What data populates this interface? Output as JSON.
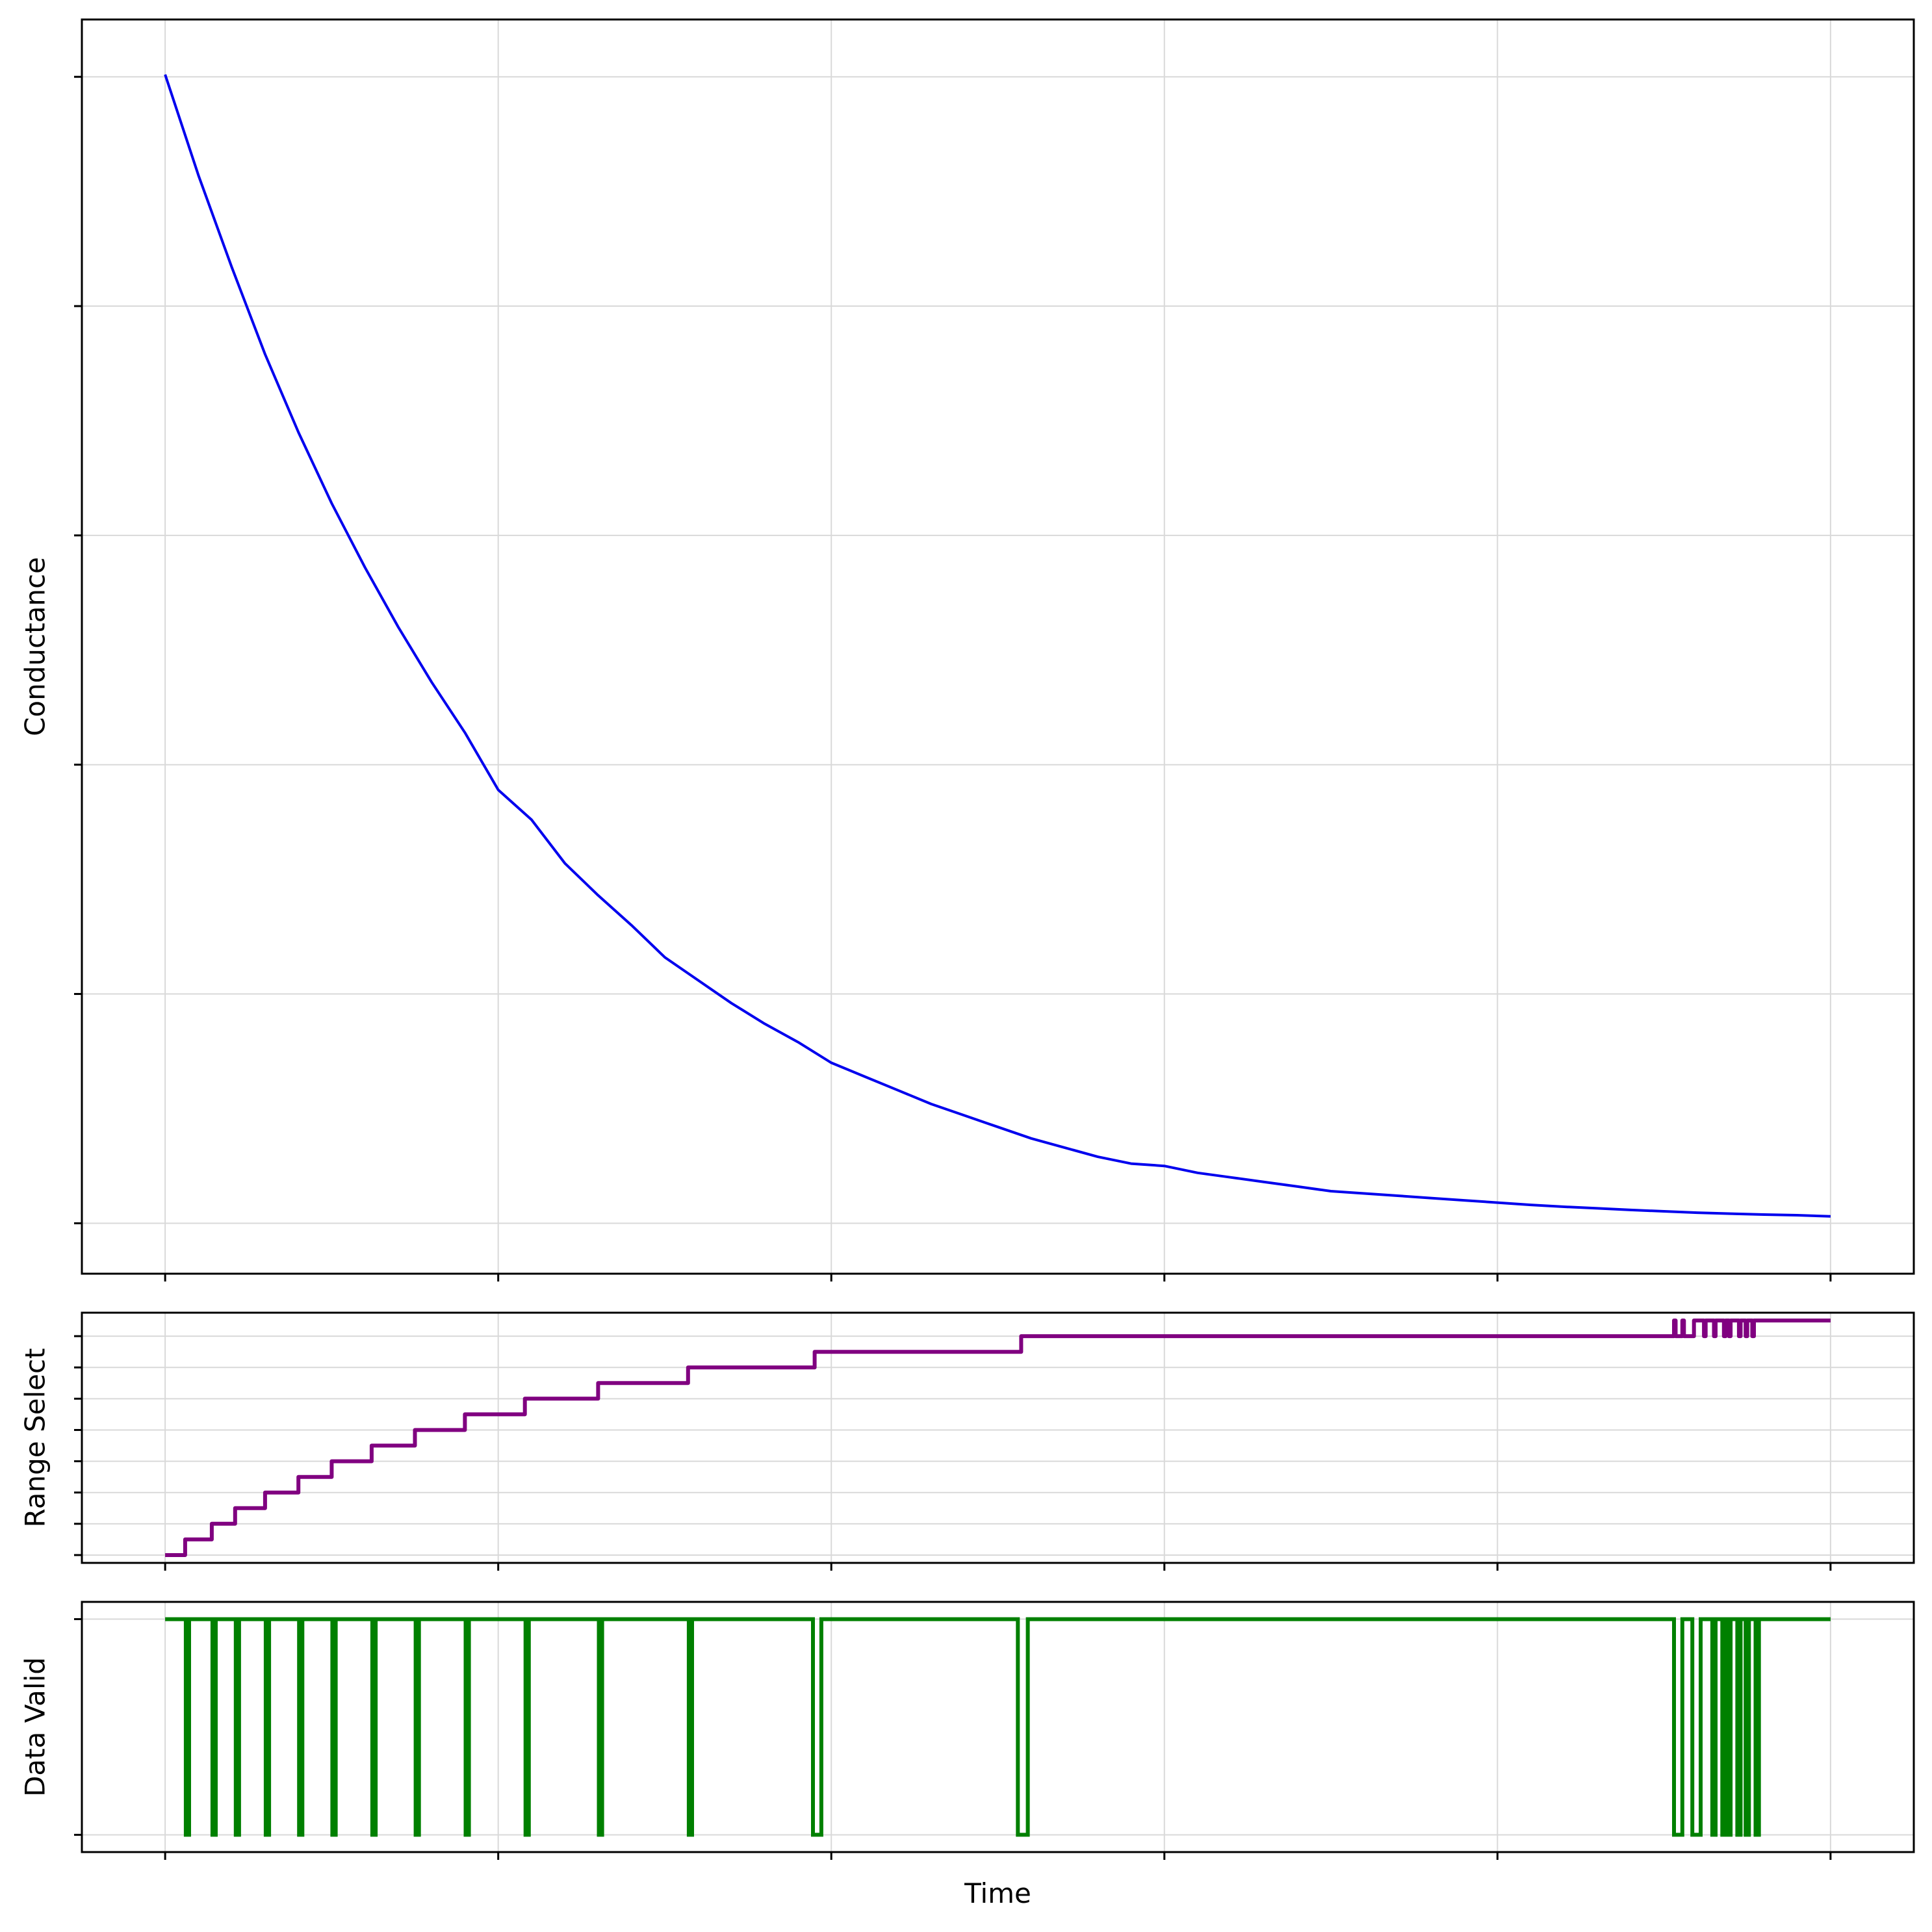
{
  "colors": {
    "conductance": "#0000ee",
    "range_select": "#800080",
    "data_valid": "#008000",
    "grid": "#d9d9d9",
    "frame": "#000000"
  },
  "chart_data": [
    {
      "id": "conductance",
      "type": "line",
      "title": "",
      "xlabel": "",
      "ylabel": "Conductance",
      "xlim": [
        -2.5,
        52.5
      ],
      "ylim": [
        -2.2,
        52.5
      ],
      "grid": true,
      "xticks": [
        0,
        10,
        20,
        30,
        40,
        50
      ],
      "yticks": [
        0,
        10,
        20,
        30,
        40,
        50
      ],
      "tick_labels_shown": false,
      "series": [
        {
          "x": [
            0,
            1,
            2,
            3,
            4,
            5,
            6,
            7,
            8,
            9,
            10,
            11,
            12,
            13,
            14,
            15,
            16,
            17,
            18,
            19,
            20,
            21,
            22,
            23,
            24,
            25,
            26,
            27,
            28,
            29,
            30,
            31,
            32,
            33,
            34,
            35,
            36,
            37,
            38,
            39,
            40,
            41,
            42,
            43,
            44,
            45,
            46,
            47,
            48,
            49,
            50
          ],
          "y": [
            50.1,
            45.7,
            41.7,
            37.9,
            34.5,
            31.4,
            28.6,
            26.0,
            23.6,
            21.4,
            18.9,
            17.6,
            15.7,
            14.3,
            13.0,
            11.6,
            10.6,
            9.6,
            8.7,
            7.9,
            7.0,
            6.4,
            5.8,
            5.2,
            4.7,
            4.2,
            3.7,
            3.3,
            2.9,
            2.6,
            2.5,
            2.2,
            2.0,
            1.8,
            1.6,
            1.4,
            1.3,
            1.2,
            1.1,
            1.0,
            0.9,
            0.8,
            0.72,
            0.65,
            0.58,
            0.52,
            0.46,
            0.42,
            0.38,
            0.35,
            0.3
          ]
        }
      ]
    },
    {
      "id": "range-select",
      "type": "line",
      "title": "",
      "xlabel": "",
      "ylabel": "Range Select",
      "xlim": [
        -2.5,
        52.5
      ],
      "ylim": [
        -0.25,
        7.75
      ],
      "grid": true,
      "xticks": [
        0,
        10,
        20,
        30,
        40,
        50
      ],
      "yticks": [
        0,
        1,
        2,
        3,
        4,
        5,
        6,
        7
      ],
      "tick_labels_shown": false,
      "series": [
        {
          "x": [
            0,
            0.6,
            0.6,
            1.4,
            1.4,
            2.1,
            2.1,
            3.0,
            3.0,
            4.0,
            4.0,
            5.0,
            5.0,
            6.2,
            6.2,
            7.5,
            7.5,
            9.0,
            9.0,
            10.8,
            10.8,
            13.0,
            13.0,
            15.7,
            15.7,
            19.5,
            19.5,
            25.7,
            25.7,
            45.3,
            45.3,
            45.35,
            45.35,
            45.55,
            45.55,
            45.6,
            45.6,
            45.9,
            45.9,
            46.2,
            46.2,
            46.25,
            46.25,
            46.5,
            46.5,
            46.55,
            46.55,
            46.8,
            46.8,
            46.85,
            46.85,
            46.95,
            46.95,
            47.0,
            47.0,
            47.25,
            47.25,
            47.3,
            47.3,
            47.45,
            47.45,
            47.5,
            47.5,
            47.65,
            47.65,
            47.7,
            47.7,
            50
          ],
          "y": [
            0,
            0,
            0.5,
            0.5,
            1,
            1,
            1.5,
            1.5,
            2,
            2,
            2.5,
            2.5,
            3,
            3,
            3.5,
            3.5,
            4,
            4,
            4.5,
            4.5,
            5,
            5,
            5.5,
            5.5,
            6,
            6,
            6.5,
            6.5,
            7,
            7,
            7.5,
            7.5,
            7,
            7,
            7.5,
            7.5,
            7,
            7,
            7.5,
            7.5,
            7,
            7,
            7.5,
            7.5,
            7,
            7,
            7.5,
            7.5,
            7,
            7,
            7.5,
            7.5,
            7,
            7,
            7.5,
            7.5,
            7,
            7,
            7.5,
            7.5,
            7,
            7,
            7.5,
            7.5,
            7,
            7,
            7.5,
            7.5
          ]
        }
      ]
    },
    {
      "id": "data-valid",
      "type": "line",
      "title": "",
      "xlabel": "Time",
      "ylabel": "Data Valid",
      "xlim": [
        -2.5,
        52.5
      ],
      "ylim": [
        -0.08,
        1.08
      ],
      "grid": true,
      "xticks": [
        0,
        10,
        20,
        30,
        40,
        50
      ],
      "yticks": [
        0,
        1
      ],
      "tick_labels_shown": false,
      "invalid_intervals": [
        [
          0.62,
          0.72
        ],
        [
          1.42,
          1.52
        ],
        [
          2.12,
          2.22
        ],
        [
          3.02,
          3.12
        ],
        [
          4.02,
          4.12
        ],
        [
          5.02,
          5.12
        ],
        [
          6.22,
          6.32
        ],
        [
          7.52,
          7.62
        ],
        [
          9.02,
          9.12
        ],
        [
          10.82,
          10.92
        ],
        [
          13.02,
          13.12
        ],
        [
          15.72,
          15.82
        ],
        [
          19.45,
          19.7
        ],
        [
          25.6,
          25.9
        ],
        [
          45.3,
          45.55
        ],
        [
          45.85,
          46.1
        ],
        [
          46.45,
          46.55
        ],
        [
          46.75,
          46.85
        ],
        [
          46.95,
          47.0
        ],
        [
          47.2,
          47.3
        ],
        [
          47.45,
          47.55
        ],
        [
          47.75,
          47.85
        ]
      ]
    }
  ],
  "labels": {
    "conductance_ylabel": "Conductance",
    "range_ylabel": "Range Select",
    "valid_ylabel": "Data Valid",
    "time_xlabel": "Time"
  }
}
